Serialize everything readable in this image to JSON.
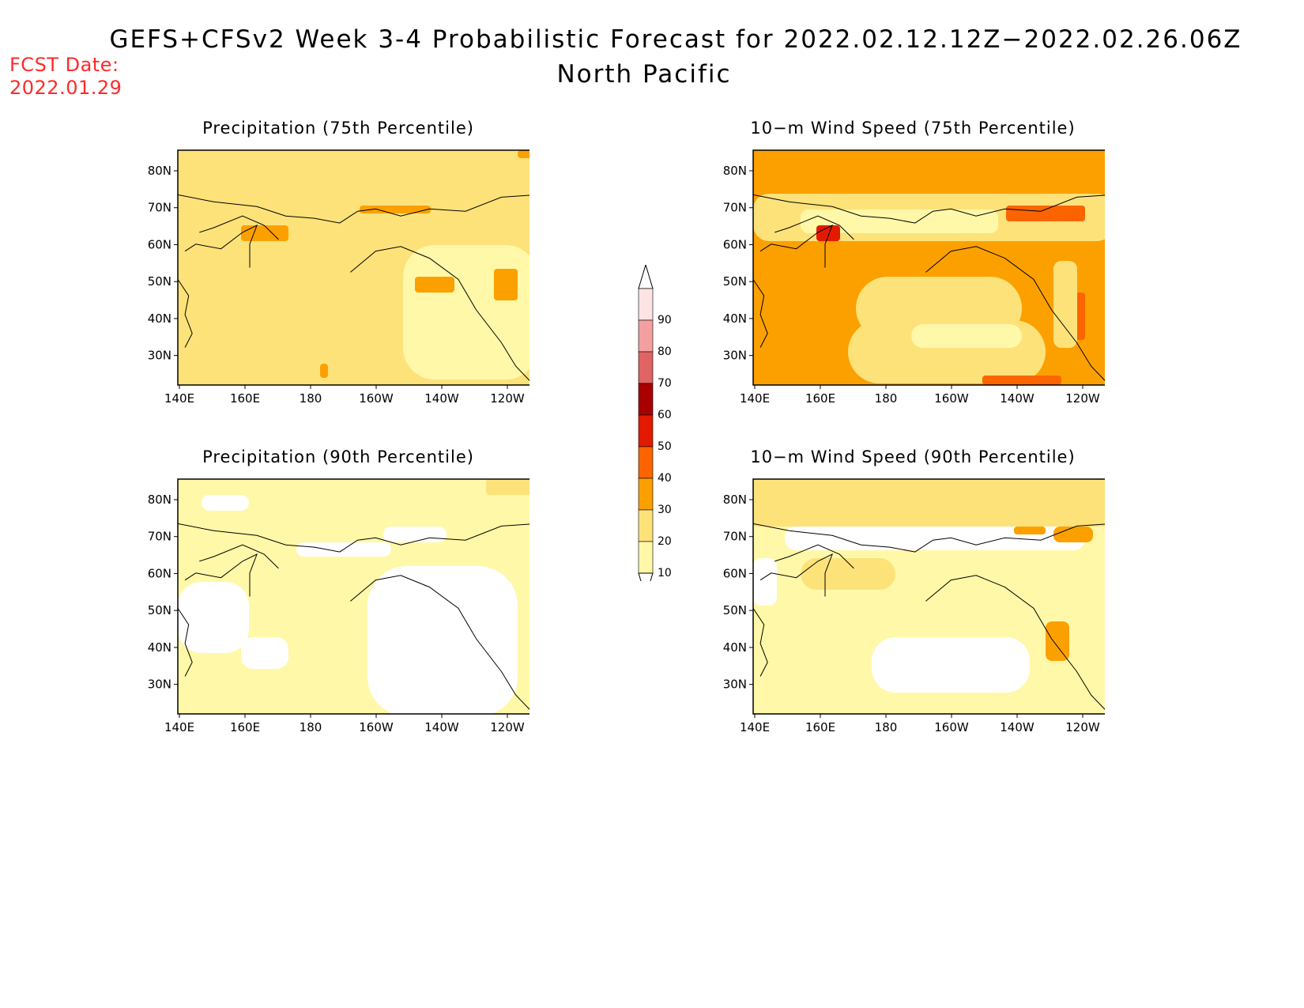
{
  "title": "GEFS+CFSv2 Week 3-4 Probabilistic Forecast for 2022.02.12.12Z−2022.02.26.06Z",
  "subtitle": "North Pacific",
  "fcst_label": "FCST Date:",
  "fcst_date": "2022.01.29",
  "colors": {
    "10": "#fff8a8",
    "20": "#fde27a",
    "30": "#fca000",
    "40": "#fc6400",
    "50": "#e41a00",
    "60": "#a80000",
    "70": "#e06464",
    "80": "#f4a0a0",
    "90": "#fde4e4"
  },
  "colorbar": {
    "levels": [
      "90",
      "80",
      "70",
      "60",
      "50",
      "40",
      "30",
      "20",
      "10"
    ]
  },
  "lat_ticks": [
    "80N",
    "70N",
    "60N",
    "50N",
    "40N",
    "30N"
  ],
  "lon_ticks": [
    "140E",
    "160E",
    "180",
    "160W",
    "140W",
    "120W"
  ],
  "panels": [
    {
      "id": "precip-75",
      "title": "Precipitation (75th Percentile)",
      "base_level": "20"
    },
    {
      "id": "wind-75",
      "title": "10−m Wind Speed (75th Percentile)",
      "base_level": "30"
    },
    {
      "id": "precip-90",
      "title": "Precipitation (90th Percentile)",
      "base_level": "10"
    },
    {
      "id": "wind-90",
      "title": "10−m Wind Speed (90th Percentile)",
      "base_level": "10"
    }
  ]
}
